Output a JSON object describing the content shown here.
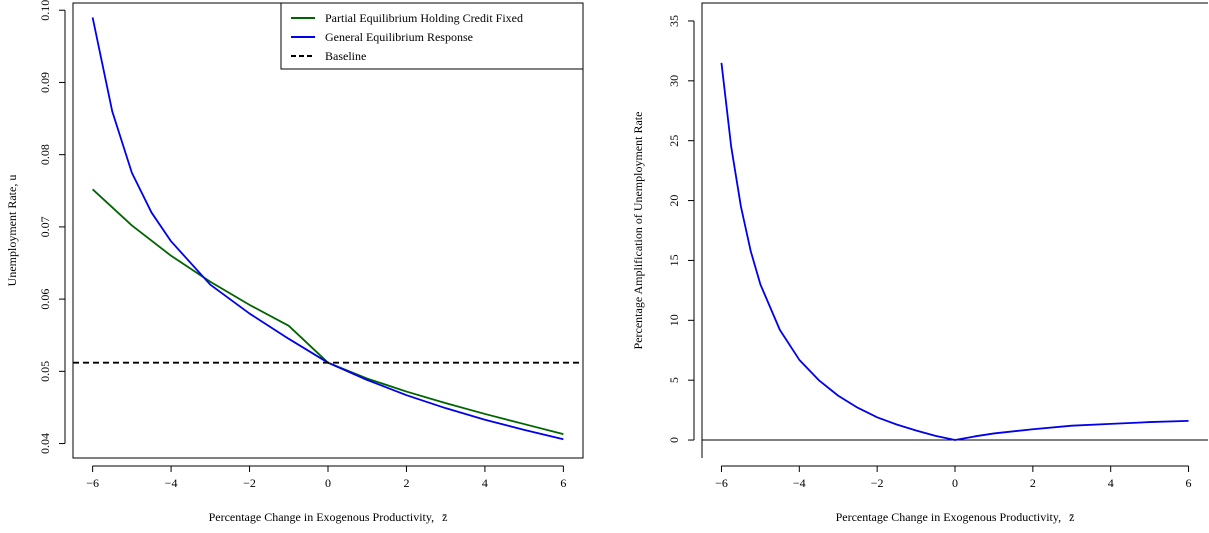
{
  "chart_data": [
    {
      "type": "line",
      "title": "",
      "xlabel": "Percentage Change in Exogenous Productivity,",
      "xlabel_symbol": "z̄",
      "ylabel": "Unemployment Rate, u",
      "xlim": [
        -6.5,
        6.5
      ],
      "ylim": [
        0.038,
        0.101
      ],
      "x_ticks": [
        -6,
        -4,
        -2,
        0,
        2,
        4,
        6
      ],
      "x_tick_labels": [
        "−6",
        "−4",
        "−2",
        "0",
        "2",
        "4",
        "6"
      ],
      "y_ticks": [
        0.04,
        0.05,
        0.06,
        0.07,
        0.08,
        0.09,
        0.1
      ],
      "y_tick_labels": [
        "0.04",
        "0.05",
        "0.06",
        "0.07",
        "0.08",
        "0.09",
        "0.10"
      ],
      "grid": false,
      "legend_position": "top-right",
      "series": [
        {
          "name": "Partial Equilibrium Holding Credit Fixed",
          "color": "#006400",
          "style": "solid",
          "x": [
            -6,
            -5,
            -4,
            -3,
            -2,
            -1,
            0,
            1,
            2,
            3,
            4,
            5,
            6
          ],
          "y": [
            0.0752,
            0.0702,
            0.066,
            0.0624,
            0.0592,
            0.0563,
            0.0512,
            0.049,
            0.0472,
            0.0456,
            0.0441,
            0.0427,
            0.0413
          ]
        },
        {
          "name": "General Equilibrium Response",
          "color": "#0000ee",
          "style": "solid",
          "x": [
            -6,
            -5.5,
            -5,
            -4.5,
            -4,
            -3,
            -2,
            -1,
            0,
            1,
            2,
            3,
            4,
            5,
            6
          ],
          "y": [
            0.099,
            0.086,
            0.0775,
            0.072,
            0.068,
            0.062,
            0.058,
            0.0545,
            0.0512,
            0.0488,
            0.0467,
            0.0449,
            0.0433,
            0.0419,
            0.0406
          ]
        },
        {
          "name": "Baseline",
          "color": "#000000",
          "style": "dashed",
          "x": [
            -6.5,
            6.5
          ],
          "y": [
            0.0512,
            0.0512
          ]
        }
      ]
    },
    {
      "type": "line",
      "title": "",
      "xlabel": "Percentage Change in Exogenous Productivity,",
      "xlabel_symbol": "z̄",
      "ylabel": "Percentage Amplification of Unemployment Rate",
      "xlim": [
        -6.5,
        6.5
      ],
      "ylim": [
        -1.5,
        36.5
      ],
      "x_ticks": [
        -6,
        -4,
        -2,
        0,
        2,
        4,
        6
      ],
      "x_tick_labels": [
        "−6",
        "−4",
        "−2",
        "0",
        "2",
        "4",
        "6"
      ],
      "y_ticks": [
        0,
        5,
        10,
        15,
        20,
        25,
        30,
        35
      ],
      "y_tick_labels": [
        "0",
        "5",
        "10",
        "15",
        "20",
        "25",
        "30",
        "35"
      ],
      "grid": false,
      "reference_line_y": 0,
      "series": [
        {
          "name": "",
          "color": "#0000ee",
          "style": "solid",
          "x": [
            -6,
            -5.75,
            -5.5,
            -5.25,
            -5,
            -4.5,
            -4,
            -3.5,
            -3,
            -2.5,
            -2,
            -1.5,
            -1,
            -0.5,
            0,
            0.5,
            1,
            2,
            3,
            4,
            5,
            6
          ],
          "y": [
            31.5,
            24.5,
            19.5,
            15.8,
            13.0,
            9.2,
            6.7,
            5.0,
            3.7,
            2.7,
            1.9,
            1.3,
            0.8,
            0.35,
            0,
            0.3,
            0.55,
            0.9,
            1.2,
            1.35,
            1.5,
            1.6
          ]
        }
      ]
    }
  ]
}
